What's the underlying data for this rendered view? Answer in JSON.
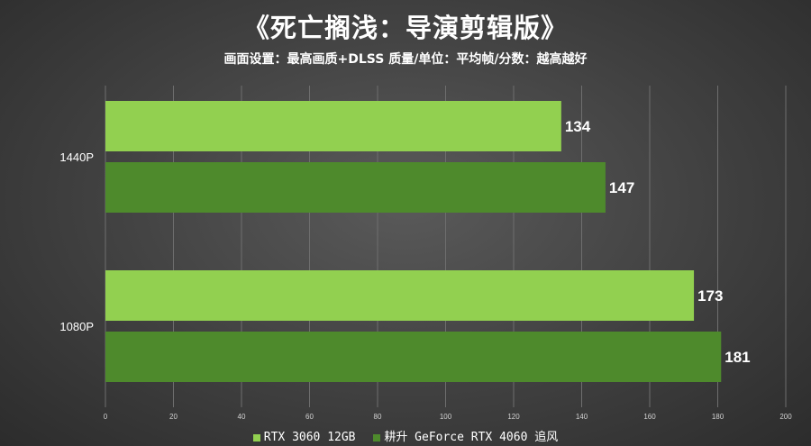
{
  "chart_data": {
    "type": "bar",
    "orientation": "horizontal",
    "title": "《死亡搁浅：导演剪辑版》",
    "subtitle": "画面设置：最高画质+DLSS 质量/单位：平均帧/分数：越高越好",
    "categories": [
      "1440P",
      "1080P"
    ],
    "series": [
      {
        "name": "RTX 3060 12GB",
        "values": [
          134,
          173
        ],
        "color": "#92d050"
      },
      {
        "name": "耕升 GeForce RTX 4060 追风",
        "values": [
          147,
          181
        ],
        "color": "#4e8a2c"
      }
    ],
    "xlim": [
      0,
      200
    ],
    "xticks": [
      0,
      20,
      40,
      60,
      80,
      100,
      120,
      140,
      160,
      180,
      200
    ],
    "grid": true,
    "legend_position": "bottom"
  }
}
